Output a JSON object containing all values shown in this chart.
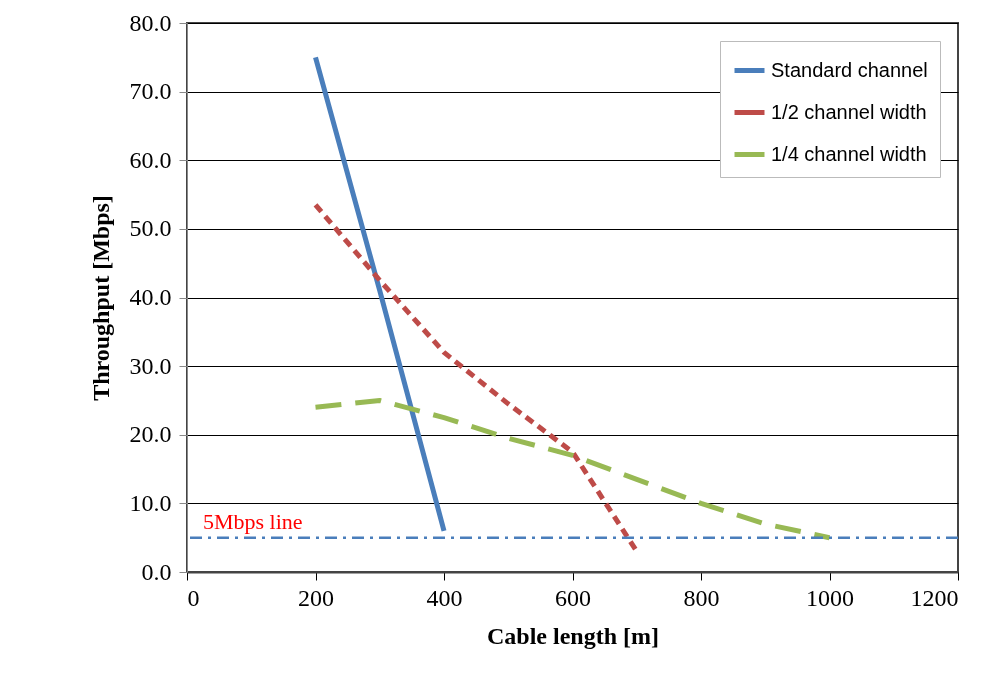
{
  "chart_data": {
    "type": "line",
    "xlabel": "Cable length [m]",
    "ylabel": "Throughput  [Mbps]",
    "series": [
      {
        "name": "Standard channel",
        "color": "#4a7ebb",
        "line_style": "solid",
        "x": [
          200,
          300,
          400
        ],
        "values": [
          75,
          41,
          6
        ]
      },
      {
        "name": "1/2 channel width",
        "color": "#be4b48",
        "line_style": "dashed",
        "x": [
          200,
          300,
          400,
          500,
          600,
          700
        ],
        "values": [
          53.5,
          42.5,
          32,
          24.5,
          17.5,
          3
        ]
      },
      {
        "name": "1/4 channel width",
        "color": "#98b954",
        "line_style": "longdash",
        "x": [
          200,
          300,
          400,
          500,
          600,
          700,
          800,
          900,
          1000
        ],
        "values": [
          24,
          25,
          22.5,
          19.5,
          17,
          13.5,
          10,
          7,
          5
        ]
      }
    ],
    "xlim": [
      0,
      1200
    ],
    "xticks": [
      0,
      200,
      400,
      600,
      800,
      1000,
      1200
    ],
    "ylim": [
      0,
      80
    ],
    "yticks": [
      {
        "value": 0,
        "label": "0.0"
      },
      {
        "value": 10,
        "label": "10.0"
      },
      {
        "value": 20,
        "label": "20.0"
      },
      {
        "value": 30,
        "label": "30.0"
      },
      {
        "value": 40,
        "label": "40.0"
      },
      {
        "value": 50,
        "label": "50.0"
      },
      {
        "value": 60,
        "label": "60.0"
      },
      {
        "value": 70,
        "label": "70.0"
      },
      {
        "value": 80,
        "label": "80.0"
      }
    ],
    "ref_lines": [
      {
        "axis": "y",
        "value": 5,
        "label": "5Mbps line",
        "color": "#4a7ebb",
        "line_style": "dashdot"
      }
    ],
    "grid": "y",
    "legend": "top right",
    "marker": "none"
  }
}
